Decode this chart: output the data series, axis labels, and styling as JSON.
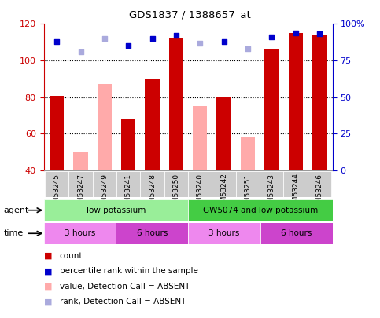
{
  "title": "GDS1837 / 1388657_at",
  "samples": [
    "GSM53245",
    "GSM53247",
    "GSM53249",
    "GSM53241",
    "GSM53248",
    "GSM53250",
    "GSM53240",
    "GSM53242",
    "GSM53251",
    "GSM53243",
    "GSM53244",
    "GSM53246"
  ],
  "count_values": [
    80.5,
    null,
    null,
    68,
    90,
    112,
    null,
    80,
    null,
    106,
    115,
    114
  ],
  "count_absent": [
    null,
    50,
    87,
    null,
    null,
    null,
    75,
    null,
    58,
    null,
    null,
    null
  ],
  "rank_values": [
    88,
    null,
    null,
    85,
    90,
    92,
    null,
    88,
    null,
    91,
    94,
    93
  ],
  "rank_absent": [
    null,
    81,
    90,
    null,
    null,
    null,
    87,
    null,
    83,
    null,
    null,
    null
  ],
  "bar_color_present": "#cc0000",
  "bar_color_absent": "#ffaaaa",
  "dot_color_present": "#0000cc",
  "dot_color_absent": "#aaaadd",
  "ylim_left": [
    40,
    120
  ],
  "ylim_right": [
    0,
    100
  ],
  "yticks_left": [
    40,
    60,
    80,
    100,
    120
  ],
  "yticks_right": [
    0,
    25,
    50,
    75,
    100
  ],
  "ytick_labels_right": [
    "0",
    "25",
    "50",
    "75",
    "100%"
  ],
  "agent_groups": [
    {
      "label": "low potassium",
      "start": 0,
      "end": 6,
      "color": "#99ee99"
    },
    {
      "label": "GW5074 and low potassium",
      "start": 6,
      "end": 12,
      "color": "#44cc44"
    }
  ],
  "time_groups": [
    {
      "label": "3 hours",
      "start": 0,
      "end": 3,
      "color": "#ee88ee"
    },
    {
      "label": "6 hours",
      "start": 3,
      "end": 6,
      "color": "#cc44cc"
    },
    {
      "label": "3 hours",
      "start": 6,
      "end": 9,
      "color": "#ee88ee"
    },
    {
      "label": "6 hours",
      "start": 9,
      "end": 12,
      "color": "#cc44cc"
    }
  ],
  "legend_items": [
    {
      "label": "count",
      "color": "#cc0000"
    },
    {
      "label": "percentile rank within the sample",
      "color": "#0000cc"
    },
    {
      "label": "value, Detection Call = ABSENT",
      "color": "#ffaaaa"
    },
    {
      "label": "rank, Detection Call = ABSENT",
      "color": "#aaaadd"
    }
  ],
  "agent_label": "agent",
  "time_label": "time",
  "bg_color": "#ffffff",
  "left_axis_color": "#cc0000",
  "right_axis_color": "#0000cc",
  "plot_bg": "#ffffff",
  "xlabel_bg": "#cccccc"
}
